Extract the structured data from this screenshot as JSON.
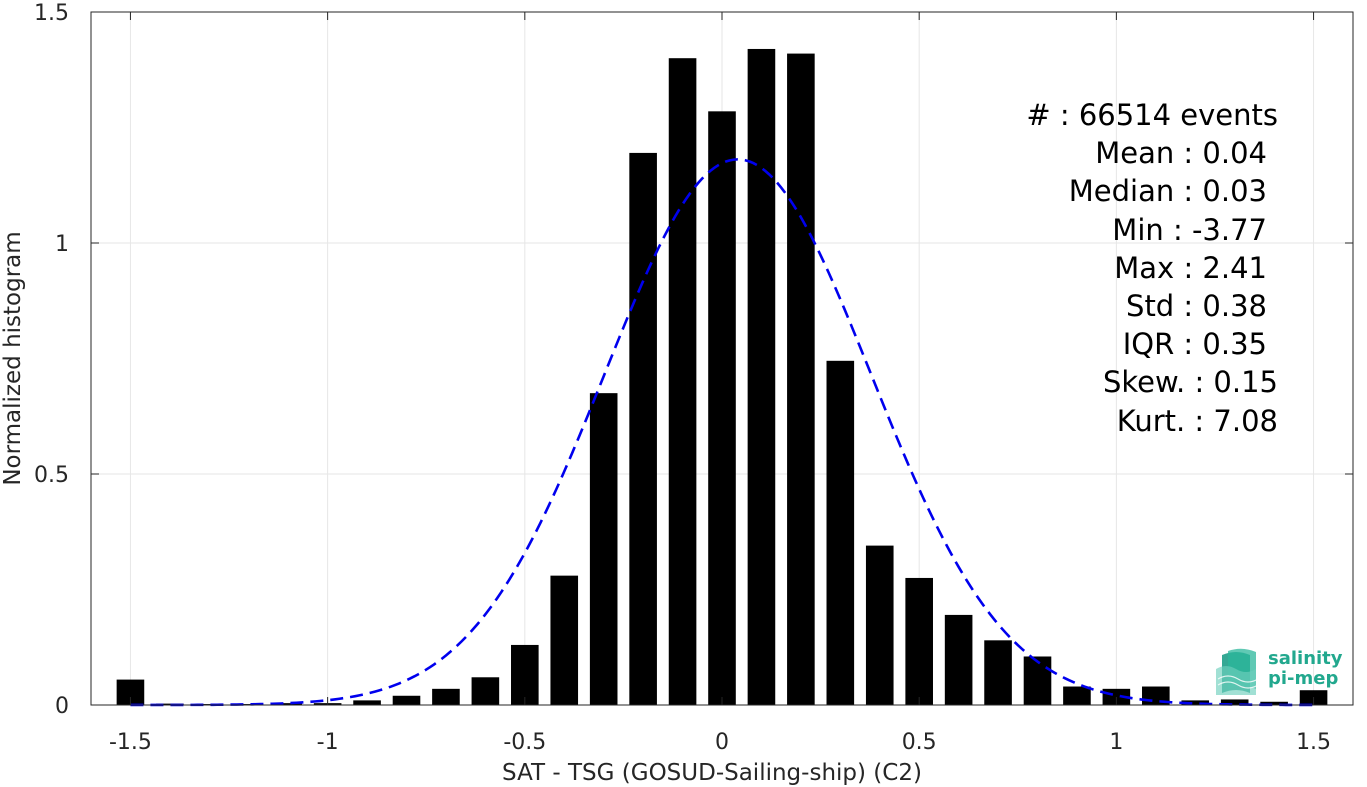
{
  "chart_data": {
    "type": "bar",
    "xlabel": "SAT - TSG (GOSUD-Sailing-ship) (C2)",
    "ylabel": "Normalized histogram",
    "xlim": [
      -1.6,
      1.6
    ],
    "ylim": [
      0,
      1.5
    ],
    "xticks": [
      -1.5,
      -1,
      -0.5,
      0,
      0.5,
      1,
      1.5
    ],
    "xtick_labels": [
      "-1.5",
      "-1",
      "-0.5",
      "0",
      "0.5",
      "1",
      "1.5"
    ],
    "yticks": [
      0,
      0.5,
      1,
      1.5
    ],
    "ytick_labels": [
      "0",
      "0.5",
      "1",
      "1.5"
    ],
    "grid": true,
    "bar_color": "#000000",
    "bins": [
      {
        "x": -1.5,
        "value": 0.055
      },
      {
        "x": -1.4,
        "value": 0.003
      },
      {
        "x": -1.3,
        "value": 0.002
      },
      {
        "x": -1.2,
        "value": 0.002
      },
      {
        "x": -1.1,
        "value": 0.004
      },
      {
        "x": -1.0,
        "value": 0.004
      },
      {
        "x": -0.9,
        "value": 0.01
      },
      {
        "x": -0.8,
        "value": 0.02
      },
      {
        "x": -0.7,
        "value": 0.035
      },
      {
        "x": -0.6,
        "value": 0.06
      },
      {
        "x": -0.5,
        "value": 0.13
      },
      {
        "x": -0.4,
        "value": 0.28
      },
      {
        "x": -0.3,
        "value": 0.675
      },
      {
        "x": -0.2,
        "value": 1.195
      },
      {
        "x": -0.1,
        "value": 1.4
      },
      {
        "x": 0.0,
        "value": 1.285
      },
      {
        "x": 0.1,
        "value": 1.42
      },
      {
        "x": 0.2,
        "value": 1.41
      },
      {
        "x": 0.3,
        "value": 0.745
      },
      {
        "x": 0.4,
        "value": 0.345
      },
      {
        "x": 0.5,
        "value": 0.275
      },
      {
        "x": 0.6,
        "value": 0.195
      },
      {
        "x": 0.7,
        "value": 0.14
      },
      {
        "x": 0.8,
        "value": 0.105
      },
      {
        "x": 0.9,
        "value": 0.04
      },
      {
        "x": 1.0,
        "value": 0.035
      },
      {
        "x": 1.1,
        "value": 0.04
      },
      {
        "x": 1.2,
        "value": 0.01
      },
      {
        "x": 1.3,
        "value": 0.012
      },
      {
        "x": 1.4,
        "value": 0.007
      },
      {
        "x": 1.5,
        "value": 0.032
      }
    ],
    "fit_curve": {
      "style": "dashed",
      "color": "#0000ee",
      "type": "gaussian",
      "mean": 0.04,
      "std": 0.3378
    },
    "stats": [
      "#  : 66514 events",
      "Mean : 0.04",
      "Median : 0.03",
      "Min : -3.77",
      "Max : 2.41",
      "Std : 0.38",
      "IQR : 0.35",
      "Skew. : 0.15",
      "Kurt. : 7.08"
    ]
  },
  "logo": {
    "line1": "salinity",
    "line2": "pi-mep",
    "color": "#22a88e"
  }
}
